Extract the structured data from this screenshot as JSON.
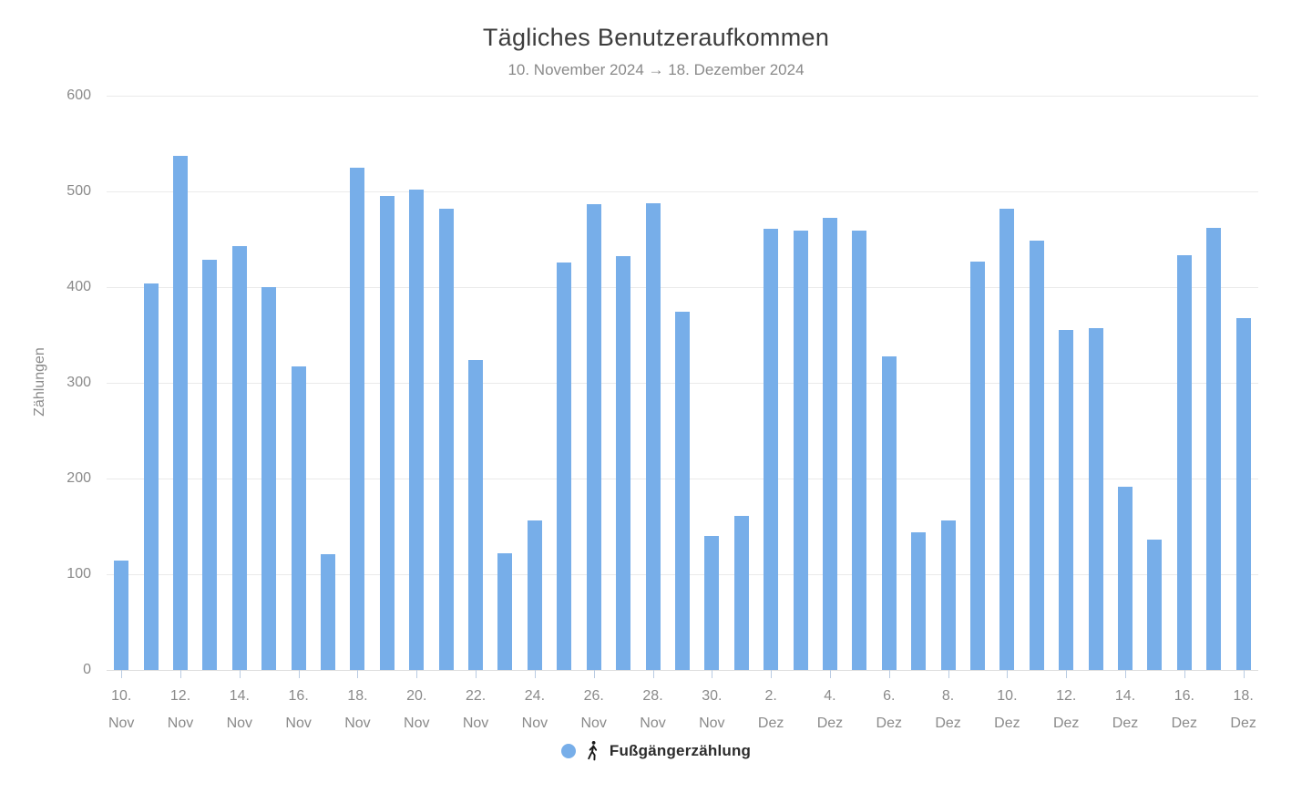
{
  "chart_data": {
    "type": "bar",
    "title": "Tägliches Benutzeraufkommen",
    "subtitle": "10. November 2024 → 18. Dezember 2024",
    "xlabel": "",
    "ylabel": "Zählungen",
    "ylim": [
      0,
      600
    ],
    "y_ticks": [
      0,
      100,
      200,
      300,
      400,
      500,
      600
    ],
    "grid": "horizontal",
    "legend_position": "bottom",
    "x_label_every": 2,
    "series": [
      {
        "name": "Fußgängerzählung",
        "values": [
          114,
          404,
          537,
          429,
          443,
          400,
          317,
          121,
          525,
          495,
          502,
          482,
          324,
          122,
          156,
          426,
          487,
          432,
          488,
          374,
          140,
          161,
          461,
          459,
          472,
          459,
          328,
          144,
          156,
          427,
          482,
          449,
          355,
          357,
          191,
          136,
          433,
          462,
          368
        ]
      }
    ],
    "categories": [
      "10. Nov",
      "11. Nov",
      "12. Nov",
      "13. Nov",
      "14. Nov",
      "15. Nov",
      "16. Nov",
      "17. Nov",
      "18. Nov",
      "19. Nov",
      "20. Nov",
      "21. Nov",
      "22. Nov",
      "23. Nov",
      "24. Nov",
      "25. Nov",
      "26. Nov",
      "27. Nov",
      "28. Nov",
      "29. Nov",
      "30. Nov",
      "1. Dez",
      "2. Dez",
      "3. Dez",
      "4. Dez",
      "5. Dez",
      "6. Dez",
      "7. Dez",
      "8. Dez",
      "9. Dez",
      "10. Dez",
      "11. Dez",
      "12. Dez",
      "13. Dez",
      "14. Dez",
      "15. Dez",
      "16. Dez",
      "17. Dez",
      "18. Dez"
    ]
  },
  "legend": {
    "label": "Fußgängerzählung",
    "marker": "circle",
    "pictogram": "walking-person-icon"
  },
  "colors": {
    "bar": "#77aee9",
    "grid": "#eaeaea",
    "zero_line": "#dedede",
    "x_tick": "#b9cbe2",
    "title_text": "#3d3d3d",
    "muted_text": "#8a8a8a",
    "legend_text": "#2b2b2b",
    "pictogram": "#1a1a1a"
  }
}
